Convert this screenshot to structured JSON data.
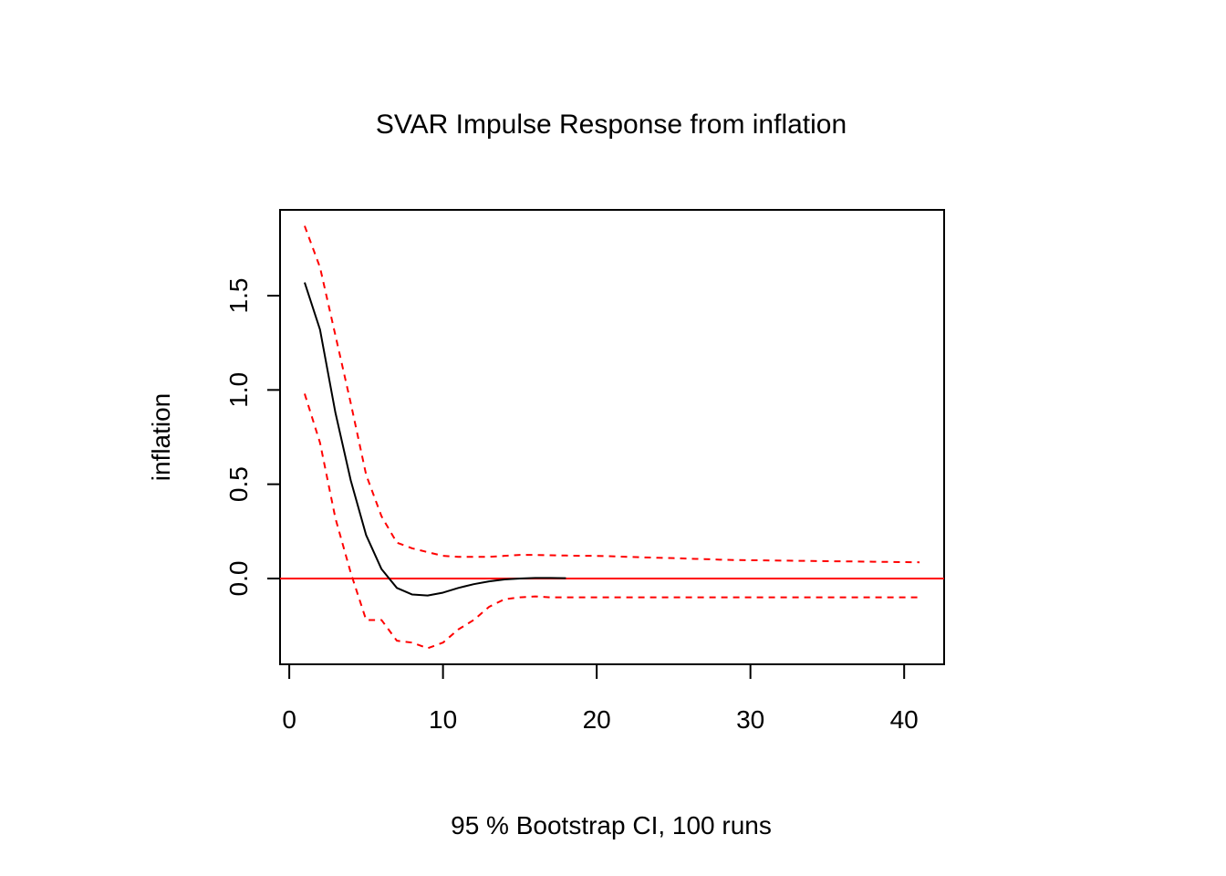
{
  "chart_data": {
    "type": "line",
    "title": "SVAR Impulse Response from inflation",
    "xlabel": "95 % Bootstrap CI,  100 runs",
    "ylabel": "inflation",
    "xlim": [
      -0.6,
      42.6
    ],
    "ylim": [
      -0.455,
      1.955
    ],
    "x_ticks": [
      0,
      10,
      20,
      30,
      40
    ],
    "y_ticks": [
      0.0,
      0.5,
      1.0,
      1.5
    ],
    "y_tick_labels": [
      "0.0",
      "0.5",
      "1.0",
      "1.5"
    ],
    "x_tick_labels": [
      "0",
      "10",
      "20",
      "30",
      "40"
    ],
    "grid": false,
    "legend": "none",
    "reference_line": {
      "y": 0,
      "color": "#ff0000",
      "style": "solid"
    },
    "series": [
      {
        "role": "impulse-response",
        "color": "#000000",
        "style": "solid",
        "x": [
          1,
          2,
          3,
          4,
          5,
          6,
          7,
          8,
          9,
          10,
          11,
          12,
          13,
          14,
          15,
          16,
          17,
          18
        ],
        "values": [
          1.57,
          1.32,
          0.88,
          0.52,
          0.23,
          0.05,
          -0.05,
          -0.085,
          -0.09,
          -0.075,
          -0.05,
          -0.03,
          -0.015,
          -0.005,
          0.0,
          0.003,
          0.003,
          0.002
        ]
      },
      {
        "role": "upper-bound",
        "color": "#ff0000",
        "style": "dashed",
        "x": [
          1,
          2,
          3,
          4,
          5,
          6,
          7,
          8,
          9,
          10,
          11,
          12,
          13,
          14,
          15,
          16,
          17,
          18,
          19,
          20,
          21,
          22,
          23,
          24,
          25,
          26,
          27,
          28,
          29,
          30,
          31,
          32,
          33,
          34,
          35,
          36,
          37,
          38,
          39,
          40,
          41
        ],
        "values": [
          1.87,
          1.65,
          1.29,
          0.93,
          0.55,
          0.33,
          0.19,
          0.16,
          0.14,
          0.12,
          0.115,
          0.115,
          0.115,
          0.12,
          0.125,
          0.125,
          0.123,
          0.122,
          0.12,
          0.12,
          0.118,
          0.115,
          0.112,
          0.11,
          0.108,
          0.105,
          0.103,
          0.1,
          0.098,
          0.097,
          0.096,
          0.095,
          0.094,
          0.093,
          0.092,
          0.091,
          0.09,
          0.089,
          0.088,
          0.087,
          0.086
        ]
      },
      {
        "role": "lower-bound",
        "color": "#ff0000",
        "style": "dashed",
        "x": [
          1,
          2,
          3,
          4,
          5,
          6,
          7,
          8,
          9,
          10,
          11,
          12,
          13,
          14,
          15,
          16,
          17,
          18,
          19,
          20,
          21,
          22,
          23,
          24,
          25,
          26,
          27,
          28,
          29,
          30,
          31,
          32,
          33,
          34,
          35,
          36,
          37,
          38,
          39,
          40,
          41
        ],
        "values": [
          0.98,
          0.72,
          0.32,
          0.03,
          -0.22,
          -0.22,
          -0.33,
          -0.34,
          -0.37,
          -0.34,
          -0.27,
          -0.22,
          -0.15,
          -0.11,
          -0.1,
          -0.095,
          -0.1,
          -0.1,
          -0.1,
          -0.1,
          -0.1,
          -0.1,
          -0.1,
          -0.1,
          -0.1,
          -0.1,
          -0.1,
          -0.1,
          -0.1,
          -0.1,
          -0.1,
          -0.1,
          -0.1,
          -0.1,
          -0.1,
          -0.1,
          -0.1,
          -0.1,
          -0.1,
          -0.1,
          -0.1
        ]
      }
    ]
  }
}
